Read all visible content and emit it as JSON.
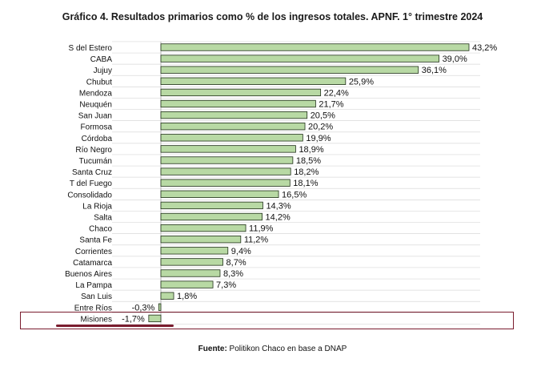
{
  "colors": {
    "bar_fill": "#b8d9a4",
    "bar_stroke": "#1f2f18",
    "highlight": "#7a1c2e",
    "gridline": "#d9d9d9"
  },
  "chart_data": {
    "type": "bar",
    "orientation": "horizontal",
    "title": "Gráfico 4. Resultados primarios como % de los ingresos totales. APNF. 1° trimestre 2024",
    "categories": [
      "S del Estero",
      "CABA",
      "Jujuy",
      "Chubut",
      "Mendoza",
      "Neuquén",
      "San Juan",
      "Formosa",
      "Córdoba",
      "Río Negro",
      "Tucumán",
      "Santa Cruz",
      "T del Fuego",
      "Consolidado",
      "La Rioja",
      "Salta",
      "Chaco",
      "Santa Fe",
      "Corrientes",
      "Catamarca",
      "Buenos Aires",
      "La Pampa",
      "San Luis",
      "Entre Ríos",
      "Misiones"
    ],
    "values": [
      43.2,
      39.0,
      36.1,
      25.9,
      22.4,
      21.7,
      20.5,
      20.2,
      19.9,
      18.9,
      18.5,
      18.2,
      18.1,
      16.5,
      14.3,
      14.2,
      11.9,
      11.2,
      9.4,
      8.7,
      8.3,
      7.3,
      1.8,
      -0.3,
      -1.7
    ],
    "data_labels": [
      "43,2%",
      "39,0%",
      "36,1%",
      "25,9%",
      "22,4%",
      "21,7%",
      "20,5%",
      "20,2%",
      "19,9%",
      "18,9%",
      "18,5%",
      "18,2%",
      "18,1%",
      "16,5%",
      "14,3%",
      "14,2%",
      "11,9%",
      "11,2%",
      "9,4%",
      "8,7%",
      "8,3%",
      "7,3%",
      "1,8%",
      "-0,3%",
      "-1,7%"
    ],
    "highlighted_category": "Misiones",
    "xlim": [
      -2,
      45
    ],
    "grid": true,
    "legend": "none"
  },
  "source": {
    "prefix": "Fuente:",
    "text": " Politikon Chaco en base a DNAP"
  }
}
